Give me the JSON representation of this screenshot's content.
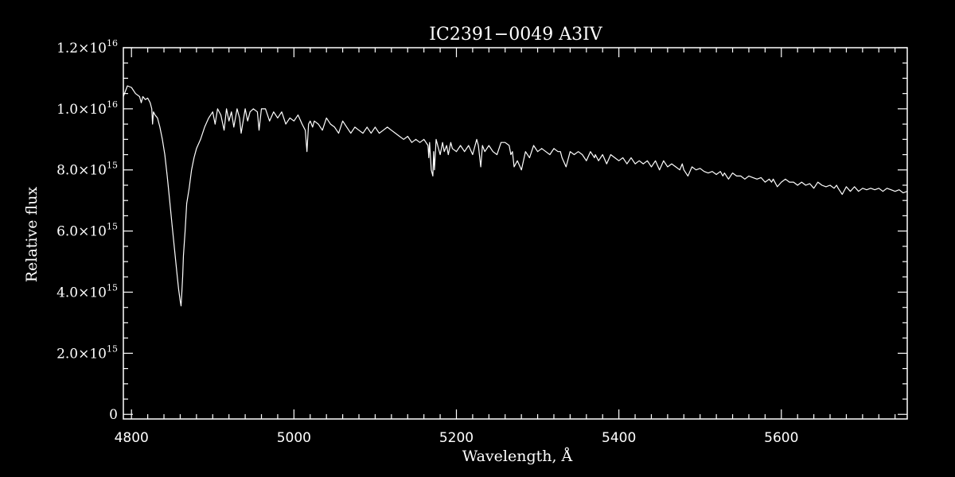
{
  "chart_data": {
    "type": "line",
    "title": "IC2391−0049   A3IV",
    "xlabel": "Wavelength, Å",
    "ylabel": "Relative flux",
    "xlim": [
      4790,
      5755
    ],
    "ylim": [
      -150000000000000.0,
      1.2e+16
    ],
    "grid": false,
    "legend": "none",
    "colors": {
      "background": "#000000",
      "foreground": "#ffffff"
    },
    "x_ticks": [
      {
        "value": 4800,
        "label": "4800"
      },
      {
        "value": 5000,
        "label": "5000"
      },
      {
        "value": 5200,
        "label": "5200"
      },
      {
        "value": 5400,
        "label": "5400"
      },
      {
        "value": 5600,
        "label": "5600"
      }
    ],
    "x_minor_step": 20,
    "y_ticks": [
      {
        "value": 0,
        "label": "0",
        "exp": ""
      },
      {
        "value": 2000000000000000.0,
        "label": "2.0×10",
        "exp": "15"
      },
      {
        "value": 4000000000000000.0,
        "label": "4.0×10",
        "exp": "15"
      },
      {
        "value": 6000000000000000.0,
        "label": "6.0×10",
        "exp": "15"
      },
      {
        "value": 8000000000000000.0,
        "label": "8.0×10",
        "exp": "15"
      },
      {
        "value": 1e+16,
        "label": "1.0×10",
        "exp": "16"
      },
      {
        "value": 1.2e+16,
        "label": "1.2×10",
        "exp": "16"
      }
    ],
    "y_minor_step": 500000000000000.0,
    "series": [
      {
        "x": [
          4790,
          4795,
          4800,
          4805,
          4810,
          4812,
          4814,
          4817,
          4820,
          4823,
          4825,
          4826,
          4827,
          4829,
          4832,
          4835,
          4838,
          4841,
          4844,
          4847,
          4850,
          4853,
          4856,
          4858,
          4860,
          4861,
          4862,
          4863,
          4864,
          4866,
          4868,
          4871,
          4874,
          4877,
          4880,
          4885,
          4890,
          4895,
          4900,
          4903,
          4906,
          4910,
          4914,
          4917,
          4920,
          4923,
          4926,
          4930,
          4933,
          4935,
          4940,
          4943,
          4946,
          4950,
          4955,
          4957,
          4960,
          4965,
          4970,
          4975,
          4980,
          4985,
          4990,
          4995,
          5000,
          5005,
          5010,
          5014,
          5016,
          5018,
          5020,
          5023,
          5025,
          5030,
          5035,
          5040,
          5045,
          5050,
          5055,
          5060,
          5065,
          5070,
          5075,
          5080,
          5085,
          5090,
          5095,
          5100,
          5105,
          5110,
          5115,
          5120,
          5125,
          5130,
          5135,
          5140,
          5145,
          5150,
          5155,
          5160,
          5165,
          5166,
          5167,
          5169,
          5171,
          5172,
          5173,
          5175,
          5178,
          5180,
          5183,
          5185,
          5188,
          5190,
          5193,
          5195,
          5200,
          5205,
          5210,
          5215,
          5220,
          5225,
          5227,
          5230,
          5232,
          5235,
          5240,
          5245,
          5250,
          5255,
          5260,
          5265,
          5267,
          5269,
          5271,
          5275,
          5280,
          5285,
          5290,
          5295,
          5300,
          5305,
          5310,
          5315,
          5320,
          5325,
          5328,
          5330,
          5335,
          5340,
          5345,
          5350,
          5355,
          5360,
          5365,
          5370,
          5371,
          5375,
          5380,
          5385,
          5390,
          5395,
          5400,
          5405,
          5410,
          5415,
          5420,
          5425,
          5430,
          5435,
          5440,
          5445,
          5450,
          5455,
          5460,
          5465,
          5470,
          5475,
          5478,
          5480,
          5485,
          5490,
          5495,
          5500,
          5505,
          5510,
          5515,
          5520,
          5525,
          5528,
          5530,
          5535,
          5540,
          5545,
          5550,
          5555,
          5560,
          5565,
          5570,
          5575,
          5580,
          5585,
          5588,
          5590,
          5595,
          5600,
          5605,
          5610,
          5615,
          5620,
          5625,
          5630,
          5635,
          5640,
          5645,
          5650,
          5655,
          5660,
          5665,
          5668,
          5670,
          5675,
          5680,
          5685,
          5690,
          5695,
          5700,
          5705,
          5710,
          5715,
          5720,
          5725,
          5730,
          5735,
          5740,
          5745,
          5750,
          5755
        ],
        "y": [
          1.04e+16,
          1.075e+16,
          1.07e+16,
          1.05e+16,
          1.04e+16,
          1.02e+16,
          1.04e+16,
          1.03e+16,
          1.035e+16,
          1.02e+16,
          1e+16,
          9500000000000000.0,
          9900000000000000.0,
          9800000000000000.0,
          9700000000000000.0,
          9400000000000000.0,
          9000000000000000.0,
          8500000000000000.0,
          7800000000000000.0,
          7000000000000000.0,
          6200000000000000.0,
          5400000000000000.0,
          4600000000000000.0,
          4100000000000000.0,
          3700000000000000.0,
          3550000000000000.0,
          4000000000000000.0,
          4500000000000000.0,
          5200000000000000.0,
          6000000000000000.0,
          6900000000000000.0,
          7400000000000000.0,
          8000000000000000.0,
          8400000000000000.0,
          8700000000000000.0,
          9000000000000000.0,
          9400000000000000.0,
          9700000000000000.0,
          9900000000000000.0,
          9500000000000000.0,
          1e+16,
          9800000000000000.0,
          9300000000000000.0,
          1e+16,
          9600000000000000.0,
          9900000000000000.0,
          9400000000000000.0,
          1e+16,
          9700000000000000.0,
          9200000000000000.0,
          1e+16,
          9600000000000000.0,
          9900000000000000.0,
          1e+16,
          9900000000000000.0,
          9300000000000000.0,
          1e+16,
          1e+16,
          9600000000000000.0,
          9900000000000000.0,
          9700000000000000.0,
          9900000000000000.0,
          9500000000000000.0,
          9700000000000000.0,
          9600000000000000.0,
          9800000000000000.0,
          9500000000000000.0,
          9300000000000000.0,
          8600000000000000.0,
          9500000000000000.0,
          9600000000000000.0,
          9400000000000000.0,
          9600000000000000.0,
          9500000000000000.0,
          9300000000000000.0,
          9700000000000000.0,
          9500000000000000.0,
          9400000000000000.0,
          9200000000000000.0,
          9600000000000000.0,
          9400000000000000.0,
          9200000000000000.0,
          9400000000000000.0,
          9300000000000000.0,
          9200000000000000.0,
          9400000000000000.0,
          9200000000000000.0,
          9400000000000000.0,
          9200000000000000.0,
          9300000000000000.0,
          9400000000000000.0,
          9300000000000000.0,
          9200000000000000.0,
          9100000000000000.0,
          9000000000000000.0,
          9100000000000000.0,
          8900000000000000.0,
          9000000000000000.0,
          8900000000000000.0,
          9000000000000000.0,
          8800000000000000.0,
          8400000000000000.0,
          8900000000000000.0,
          8000000000000000.0,
          7800000000000000.0,
          8600000000000000.0,
          8000000000000000.0,
          9000000000000000.0,
          8700000000000000.0,
          8500000000000000.0,
          8900000000000000.0,
          8600000000000000.0,
          8800000000000000.0,
          8500000000000000.0,
          8900000000000000.0,
          8700000000000000.0,
          8600000000000000.0,
          8800000000000000.0,
          8600000000000000.0,
          8800000000000000.0,
          8500000000000000.0,
          9000000000000000.0,
          8800000000000000.0,
          8100000000000000.0,
          8800000000000000.0,
          8600000000000000.0,
          8800000000000000.0,
          8600000000000000.0,
          8500000000000000.0,
          8900000000000000.0,
          8900000000000000.0,
          8800000000000000.0,
          8500000000000000.0,
          8600000000000000.0,
          8100000000000000.0,
          8300000000000000.0,
          8000000000000000.0,
          8600000000000000.0,
          8400000000000000.0,
          8800000000000000.0,
          8600000000000000.0,
          8700000000000000.0,
          8600000000000000.0,
          8500000000000000.0,
          8700000000000000.0,
          8600000000000000.0,
          8600000000000000.0,
          8400000000000000.0,
          8100000000000000.0,
          8600000000000000.0,
          8500000000000000.0,
          8600000000000000.0,
          8500000000000000.0,
          8300000000000000.0,
          8600000000000000.0,
          8400000000000000.0,
          8500000000000000.0,
          8300000000000000.0,
          8500000000000000.0,
          8200000000000000.0,
          8500000000000000.0,
          8400000000000000.0,
          8300000000000000.0,
          8400000000000000.0,
          8200000000000000.0,
          8400000000000000.0,
          8200000000000000.0,
          8300000000000000.0,
          8200000000000000.0,
          8300000000000000.0,
          8100000000000000.0,
          8300000000000000.0,
          8000000000000000.0,
          8300000000000000.0,
          8100000000000000.0,
          8200000000000000.0,
          8100000000000000.0,
          8000000000000000.0,
          8200000000000000.0,
          8000000000000000.0,
          7800000000000000.0,
          8100000000000000.0,
          8000000000000000.0,
          8050000000000000.0,
          7950000000000000.0,
          7900000000000000.0,
          7950000000000000.0,
          7850000000000000.0,
          7950000000000000.0,
          7800000000000000.0,
          7900000000000000.0,
          7700000000000000.0,
          7900000000000000.0,
          7800000000000000.0,
          7800000000000000.0,
          7700000000000000.0,
          7800000000000000.0,
          7750000000000000.0,
          7700000000000000.0,
          7750000000000000.0,
          7600000000000000.0,
          7700000000000000.0,
          7600000000000000.0,
          7700000000000000.0,
          7450000000000000.0,
          7600000000000000.0,
          7700000000000000.0,
          7600000000000000.0,
          7600000000000000.0,
          7500000000000000.0,
          7600000000000000.0,
          7500000000000000.0,
          7550000000000000.0,
          7400000000000000.0,
          7600000000000000.0,
          7500000000000000.0,
          7450000000000000.0,
          7500000000000000.0,
          7400000000000000.0,
          7500000000000000.0,
          7400000000000000.0,
          7200000000000000.0,
          7450000000000000.0,
          7300000000000000.0,
          7450000000000000.0,
          7300000000000000.0,
          7400000000000000.0,
          7350000000000000.0,
          7400000000000000.0,
          7350000000000000.0,
          7400000000000000.0,
          7300000000000000.0,
          7400000000000000.0,
          7350000000000000.0,
          7300000000000000.0,
          7350000000000000.0,
          7250000000000000.0,
          7300000000000000.0
        ]
      }
    ]
  }
}
